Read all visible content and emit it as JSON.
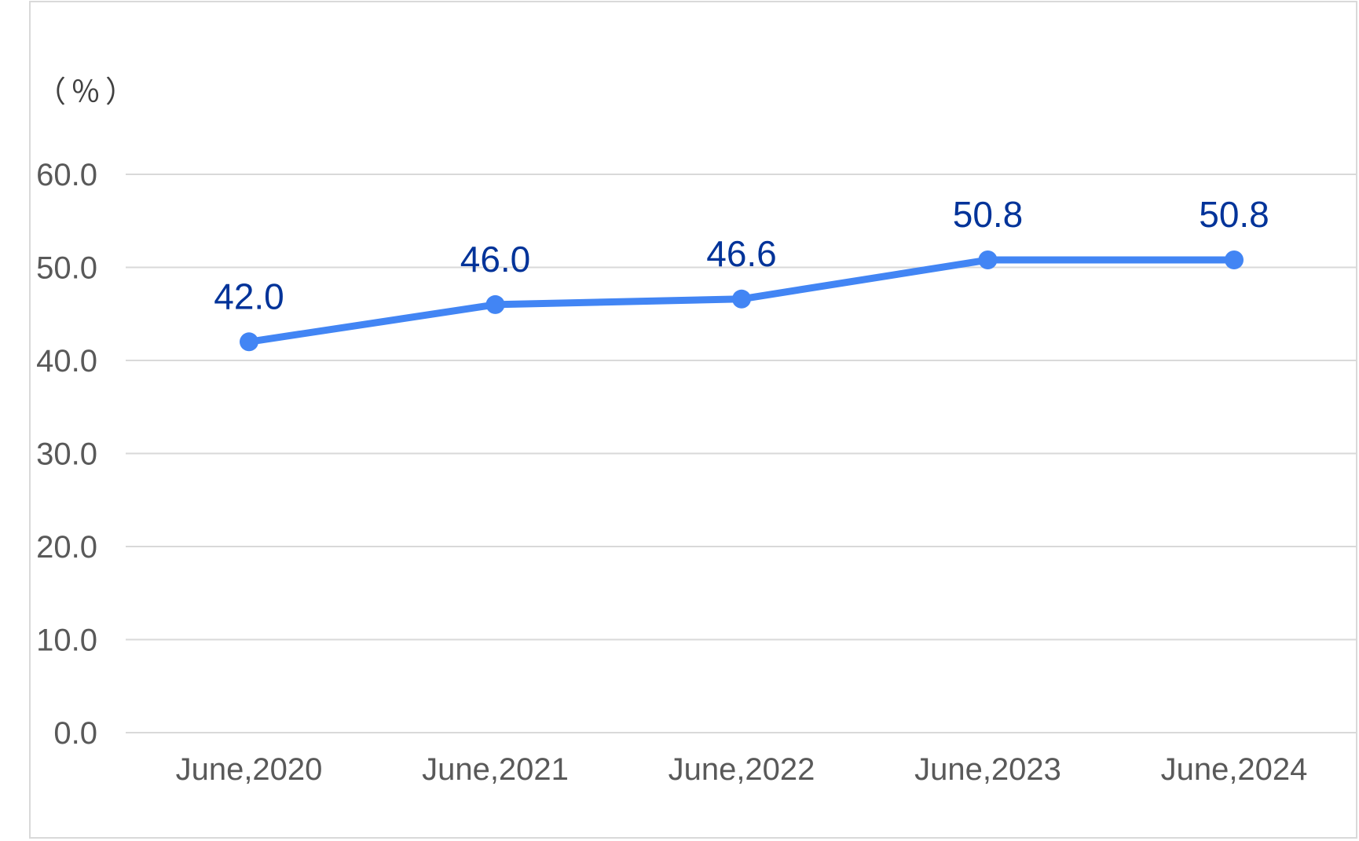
{
  "chart_data": {
    "type": "line",
    "unit_label": "（％）",
    "categories": [
      "June,2020",
      "June,2021",
      "June,2022",
      "June,2023",
      "June,2024"
    ],
    "series": [
      {
        "values": [
          42.0,
          46.0,
          46.6,
          50.8,
          50.8
        ],
        "color": "#4285f4"
      }
    ],
    "data_labels": [
      "42.0",
      "46.0",
      "46.6",
      "50.8",
      "50.8"
    ],
    "y_ticks": [
      "0.0",
      "10.0",
      "20.0",
      "30.0",
      "40.0",
      "50.0",
      "60.0"
    ],
    "ylim": [
      0,
      60
    ],
    "grid": true,
    "legend": "none",
    "label_color": "#003399",
    "title": "",
    "xlabel": "",
    "ylabel": ""
  }
}
